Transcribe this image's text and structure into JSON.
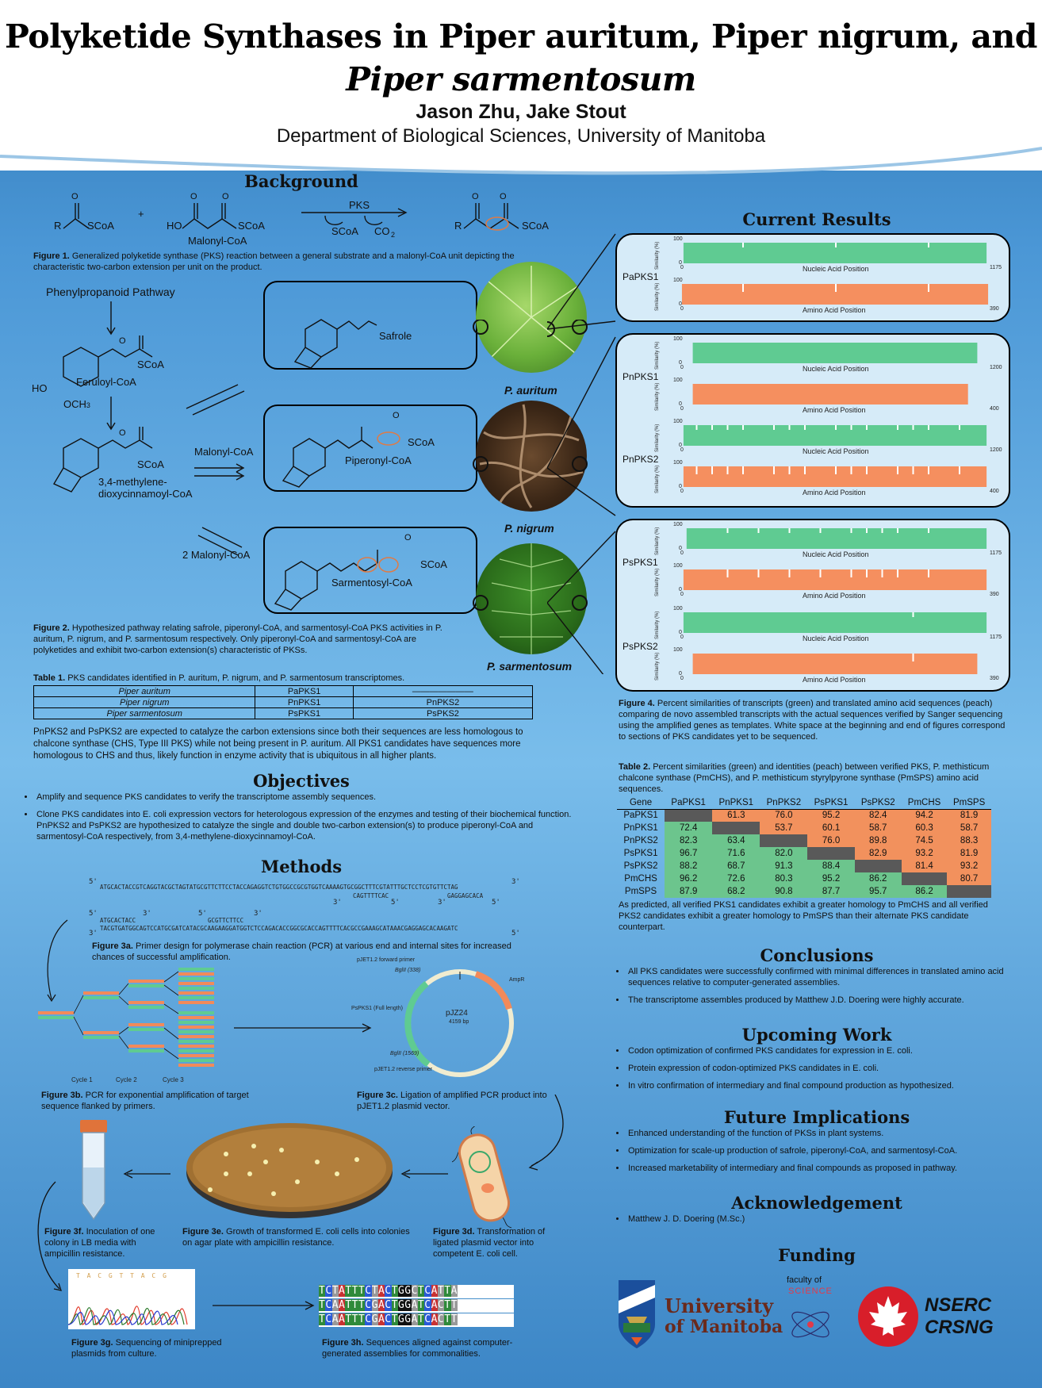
{
  "header": {
    "title_line1": "Polyketide Synthases in Piper auritum, Piper nigrum, and",
    "title_line2": "Piper sarmentosum",
    "authors": "Jason Zhu, Jake Stout",
    "department": "Department of Biological Sciences, University of Manitoba"
  },
  "background": {
    "heading": "Background",
    "fig1_caption_label": "Figure 1.",
    "fig1_caption": "Generalized polyketide synthase (PKS) reaction between a general substrate and a malonyl-CoA unit depicting the characteristic two-carbon extension per unit on the product.",
    "pathway_title": "Phenylpropanoid Pathway",
    "compounds": {
      "feruloyl": "Feruloyl-CoA",
      "methylene": "3,4-methylene-",
      "methylene2": "dioxycinnamoyl-CoA",
      "safrole": "Safrole",
      "piperonyl": "Piperonyl-CoA",
      "sarmentosyl": "Sarmentosyl-CoA",
      "malonyl": "Malonyl-CoA",
      "malonyl2": "2 Malonyl-CoA",
      "malonyl_label": "Malonyl-CoA",
      "pks": "PKS",
      "scoa": "SCoA",
      "co2": "CO",
      "ho": "HO",
      "och3": "OCH",
      "r": "R",
      "o": "O",
      "plus": "+"
    },
    "species": [
      "P. auritum",
      "P. nigrum",
      "P. sarmentosum"
    ],
    "fig2_caption_label": "Figure 2.",
    "fig2_caption": "Hypothesized pathway relating safrole, piperonyl-CoA, and sarmentosyl-CoA PKS activities in P. auritum, P. nigrum, and P. sarmentosum respectively. Only piperonyl-CoA and sarmentosyl-CoA are polyketides and exhibit two-carbon extension(s) characteristic of PKSs.",
    "table1_caption_label": "Table 1.",
    "table1_caption": "PKS candidates identified in P. auritum, P. nigrum, and P. sarmentosum transcriptomes.",
    "table1_rows": [
      [
        "Piper auritum",
        "PaPKS1",
        "———————"
      ],
      [
        "Piper nigrum",
        "PnPKS1",
        "PnPKS2"
      ],
      [
        "Piper sarmentosum",
        "PsPKS1",
        "PsPKS2"
      ]
    ],
    "para": "PnPKS2 and PsPKS2 are expected to catalyze the carbon extensions since both their sequences are less homologous to chalcone synthase (CHS, Type III PKS) while not being present in P. auritum. All PKS1 candidates have sequences more homologous to CHS and thus, likely function in enzyme activity that is ubiquitous in all higher plants."
  },
  "objectives": {
    "heading": "Objectives",
    "items": [
      "Amplify and sequence PKS candidates to verify the transcriptome assembly sequences.",
      "Clone PKS candidates into E. coli expression vectors for heterologous expression of the enzymes and testing of their biochemical function. PnPKS2 and PsPKS2 are hypothesized to catalyze the single and double two-carbon extension(s) to produce piperonyl-CoA and sarmentosyl-CoA respectively, from 3,4-methylene-dioxycinnamoyl-CoA."
    ]
  },
  "methods": {
    "heading": "Methods",
    "seq_top": "ATGCACTACCGTCAGGTACGCTAGTATGCGTTCTTCCTACCAGAGGTCTGTGGCCGCGTGGTCAAAAGTGCGGCTTTCGTATTTGCTCCTCGTGTTCTAG",
    "seq_primer_r1": "CAGTTTTCAC",
    "seq_primer_r2": "GAGGAGCACA",
    "seq_primer_f1": "ATGCACTACC",
    "seq_primer_f2": "GCGTTCTTCC",
    "seq_bottom": "TACGTGATGGCAGTCCATGCGATCATACGCAAGAAGGATGGTCTCCAGACACCGGCGCACCAGTTTTCACGCCGAAAGCATAAACGAGGAGCACAAGATC",
    "p3": "3'",
    "p5": "5'",
    "fig3a_label": "Figure 3a.",
    "fig3a": "Primer design for polymerase chain reaction (PCR) at various end and internal sites for increased chances of successful amplification.",
    "cycles": [
      "Cycle 1",
      "Cycle 2",
      "Cycle 3"
    ],
    "fig3b_label": "Figure 3b.",
    "fig3b": "PCR for exponential amplification of target sequence flanked by primers.",
    "plasmid": {
      "name": "pJZ24",
      "size": "4159 bp",
      "fwd": "pJET1.2 forward primer",
      "bgl1": "BglII (338)",
      "full": "PsPKS1 (Full length)",
      "bgl2": "BglII (1569)",
      "rev": "pJET1.2 reverse primer",
      "ampr": "AmpR"
    },
    "fig3c_label": "Figure 3c.",
    "fig3c": "Ligation of amplified PCR product into pJET1.2 plasmid vector.",
    "fig3d_label": "Figure 3d.",
    "fig3d": "Transformation of ligated plasmid vector into competent E. coli cell.",
    "fig3e_label": "Figure 3e.",
    "fig3e": "Growth of transformed E. coli cells into colonies on agar plate with ampicillin resistance.",
    "fig3f_label": "Figure 3f.",
    "fig3f": "Inoculation of one colony in LB media with ampicillin resistance.",
    "fig3g_label": "Figure 3g.",
    "fig3g": "Sequencing of miniprepped plasmids from culture.",
    "chromatogram_bases": "T A C G T T A C G",
    "alignment": [
      "TCTATTTCTACTGGCTCATTA",
      "TCAATTTCGACTGGATCACTT",
      "TCAATTTCGACTGGATCACTT"
    ],
    "fig3h_label": "Figure 3h.",
    "fig3h": "Sequences aligned against computer-generated assemblies for commonalities."
  },
  "results": {
    "heading": "Current Results",
    "plots": [
      {
        "gene": "PaPKS1",
        "na_end": "1175",
        "aa_end": "390"
      },
      {
        "gene": "PnPKS1",
        "na_end": "1200",
        "aa_end": "400"
      },
      {
        "gene": "PnPKS2",
        "na_end": "1200",
        "aa_end": "400"
      },
      {
        "gene": "PsPKS1",
        "na_end": "1175",
        "aa_end": "390"
      },
      {
        "gene": "PsPKS2",
        "na_end": "1175",
        "aa_end": "390"
      }
    ],
    "y_label": "Similarity (%)",
    "y_max": "100",
    "y_min": "0",
    "x_start": "0",
    "na_label": "Nucleic Acid Position",
    "aa_label": "Amino Acid Position",
    "fig4_label": "Figure 4.",
    "fig4": "Percent similarities of transcripts (green) and translated amino acid sequences (peach) comparing de novo assembled transcripts with the actual sequences verified by Sanger sequencing using the amplified genes as templates. White space at the beginning and end of figures correspond to sections of PKS candidates yet to be sequenced.",
    "table2_label": "Table 2.",
    "table2_caption": "Percent similarities (green) and identities (peach) between verified PKS, P. methisticum chalcone synthase (PmCHS), and P. methisticum styrylpyrone synthase (PmSPS) amino acid sequences.",
    "table2_header": [
      "Gene",
      "PaPKS1",
      "PnPKS1",
      "PnPKS2",
      "PsPKS1",
      "PsPKS2",
      "PmCHS",
      "PmSPS"
    ],
    "table2_rows": [
      [
        "PaPKS1",
        "",
        "61.3",
        "76.0",
        "95.2",
        "82.4",
        "94.2",
        "81.9"
      ],
      [
        "PnPKS1",
        "72.4",
        "",
        "53.7",
        "60.1",
        "58.7",
        "60.3",
        "58.7"
      ],
      [
        "PnPKS2",
        "82.3",
        "63.4",
        "",
        "76.0",
        "89.8",
        "74.5",
        "88.3"
      ],
      [
        "PsPKS1",
        "96.7",
        "71.6",
        "82.0",
        "",
        "82.9",
        "93.2",
        "81.9"
      ],
      [
        "PsPKS2",
        "88.2",
        "68.7",
        "91.3",
        "88.4",
        "",
        "81.4",
        "93.2"
      ],
      [
        "PmCHS",
        "96.2",
        "72.6",
        "80.3",
        "95.2",
        "86.2",
        "",
        "80.7"
      ],
      [
        "PmSPS",
        "87.9",
        "68.2",
        "90.8",
        "87.7",
        "95.7",
        "86.2",
        ""
      ]
    ],
    "after_table": "As predicted, all verified PKS1 candidates exhibit a greater homology to PmCHS and all verified PKS2 candidates exhibit a greater homology to PmSPS than their alternate PKS candidate counterpart."
  },
  "conclusions": {
    "heading": "Conclusions",
    "items": [
      "All PKS candidates were successfully confirmed with minimal differences in translated amino acid sequences relative to computer-generated assemblies.",
      "The transcriptome assembles produced by Matthew J.D. Doering were highly accurate."
    ]
  },
  "upcoming": {
    "heading": "Upcoming Work",
    "items": [
      "Codon optimization of confirmed PKS candidates for expression in E. coli.",
      "Protein expression of codon-optimized PKS candidates in E. coli.",
      "In vitro confirmation of intermediary and final compound production as hypothesized."
    ]
  },
  "future": {
    "heading": "Future Implications",
    "items": [
      "Enhanced understanding of the function of PKSs in plant systems.",
      "Optimization for scale-up production of safrole, piperonyl-CoA, and sarmentosyl-CoA.",
      "Increased marketability of intermediary and final compounds as proposed in pathway."
    ]
  },
  "ack": {
    "heading": "Acknowledgement",
    "items": [
      "Matthew J. D. Doering (M.Sc.)"
    ]
  },
  "funding": {
    "heading": "Funding",
    "um1": "University",
    "um2": "of Manitoba",
    "fac1": "faculty of",
    "fac2": "SCIENCE",
    "nserc1": "NSERC",
    "nserc2": "CRSNG"
  },
  "colors": {
    "green": "#5fcb92",
    "peach": "#f58f5f",
    "dark": "#595959",
    "nserc_red": "#d81e2a",
    "um_brown": "#6a2a1c"
  }
}
